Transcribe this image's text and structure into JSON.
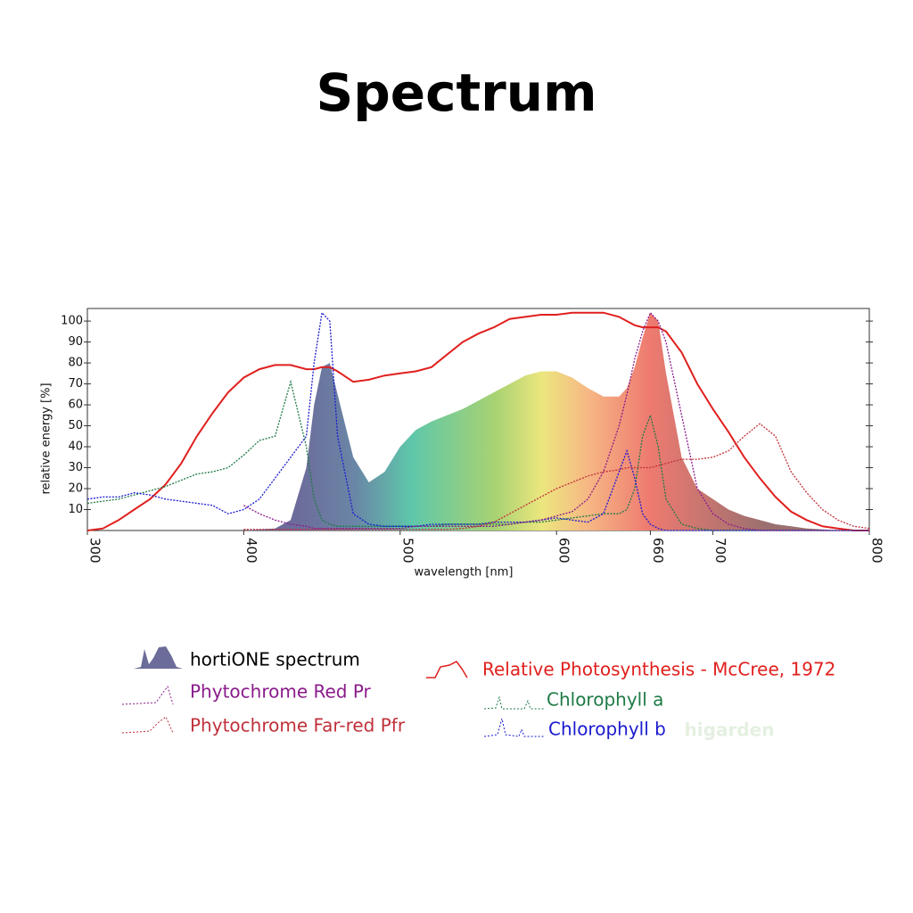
{
  "chart_data": {
    "type": "line",
    "title": "Spectrum",
    "x_label": "wavelength [nm]",
    "y_label": "relative energy [%]",
    "watermark": "higarden",
    "xlim": [
      300,
      800
    ],
    "ylim": [
      0,
      106
    ],
    "xticks": [
      300,
      400,
      500,
      600,
      660,
      700,
      800
    ],
    "yticks": [
      10,
      20,
      30,
      40,
      50,
      60,
      70,
      80,
      90,
      100
    ],
    "x": [
      300,
      310,
      320,
      330,
      340,
      350,
      360,
      370,
      380,
      390,
      400,
      410,
      420,
      430,
      440,
      445,
      450,
      455,
      460,
      470,
      480,
      490,
      500,
      510,
      520,
      530,
      540,
      550,
      560,
      570,
      580,
      590,
      600,
      610,
      620,
      630,
      640,
      645,
      650,
      655,
      660,
      665,
      670,
      680,
      690,
      700,
      710,
      720,
      730,
      740,
      750,
      760,
      770,
      780,
      790,
      800
    ],
    "series": [
      {
        "name": "hortiONE spectrum",
        "type": "area",
        "color": "#000000",
        "values": [
          0,
          0,
          0,
          0,
          0,
          0,
          0,
          0,
          0,
          0,
          0,
          0.5,
          1,
          5,
          30,
          60,
          78,
          80,
          65,
          35,
          23,
          28,
          40,
          48,
          52,
          55,
          58,
          62,
          66,
          70,
          74,
          76,
          76,
          73,
          68,
          64,
          64,
          68,
          78,
          92,
          104,
          100,
          75,
          35,
          20,
          15,
          10,
          7,
          5,
          3,
          2,
          1,
          0.5,
          0,
          0,
          0
        ]
      },
      {
        "name": "Relative Photosynthesis - McCree, 1972",
        "type": "line",
        "color": "#e0201e",
        "values": [
          0,
          1,
          5,
          10,
          15,
          22,
          32,
          45,
          56,
          66,
          73,
          77,
          79,
          79,
          77,
          77,
          78,
          78,
          76,
          71,
          72,
          74,
          75,
          76,
          78,
          84,
          90,
          94,
          97,
          101,
          102,
          103,
          103,
          104,
          104,
          104,
          102,
          100,
          98,
          97,
          97,
          97,
          95,
          85,
          70,
          58,
          47,
          35,
          25,
          16,
          9,
          5,
          2,
          1,
          0,
          0
        ]
      },
      {
        "name": "Chlorophyll a",
        "type": "dotted",
        "color": "#1e7a46",
        "values": [
          13,
          14,
          15,
          17,
          19,
          21,
          24,
          27,
          28,
          30,
          36,
          43,
          45,
          71,
          40,
          15,
          5,
          3,
          2,
          2,
          2,
          2,
          2,
          2,
          2,
          3,
          3,
          3,
          3,
          3,
          4,
          4,
          5,
          6,
          7,
          8,
          8,
          10,
          20,
          45,
          55,
          40,
          15,
          3,
          1,
          0,
          0,
          0,
          0,
          0,
          0,
          0,
          0,
          0,
          0,
          0
        ]
      },
      {
        "name": "Chlorophyll b",
        "type": "dotted",
        "color": "#1a1ad0",
        "values": [
          15,
          16,
          16,
          18,
          17,
          15,
          14,
          13,
          12,
          8,
          10,
          15,
          25,
          35,
          45,
          80,
          104,
          100,
          45,
          8,
          3,
          2,
          2,
          2,
          3,
          3,
          3,
          3,
          4,
          4,
          4,
          5,
          6,
          5,
          4,
          8,
          28,
          38,
          25,
          8,
          3,
          1,
          0,
          0,
          0,
          0,
          0,
          0,
          0,
          0,
          0,
          0,
          0,
          0,
          0,
          0
        ]
      },
      {
        "name": "Phytochrome Red Pr",
        "type": "dotted",
        "color": "#8a1a8a",
        "values": [
          null,
          null,
          null,
          null,
          null,
          null,
          null,
          null,
          null,
          null,
          12,
          8,
          5,
          3,
          2,
          1,
          1,
          1,
          1,
          1,
          1,
          1,
          1,
          2,
          2,
          2,
          2,
          2,
          2,
          3,
          4,
          5,
          7,
          9,
          15,
          28,
          50,
          65,
          82,
          95,
          104,
          100,
          90,
          55,
          20,
          8,
          3,
          1,
          0,
          0,
          0,
          0,
          0,
          0,
          0,
          0
        ]
      },
      {
        "name": "Phytochrome Far-red Pfr",
        "type": "dotted",
        "color": "#c0303a",
        "values": [
          null,
          null,
          null,
          null,
          null,
          null,
          null,
          null,
          null,
          null,
          0.5,
          0.5,
          0.5,
          0.5,
          0.5,
          0.5,
          0.5,
          0.5,
          0.5,
          0.5,
          0.5,
          0.5,
          0.5,
          0.5,
          0.5,
          0.5,
          1,
          2,
          4,
          8,
          12,
          16,
          20,
          23,
          26,
          28,
          29,
          30,
          30,
          30,
          30,
          31,
          32,
          34,
          34,
          35,
          38,
          45,
          51,
          45,
          28,
          18,
          10,
          5,
          2,
          1
        ]
      }
    ]
  }
}
